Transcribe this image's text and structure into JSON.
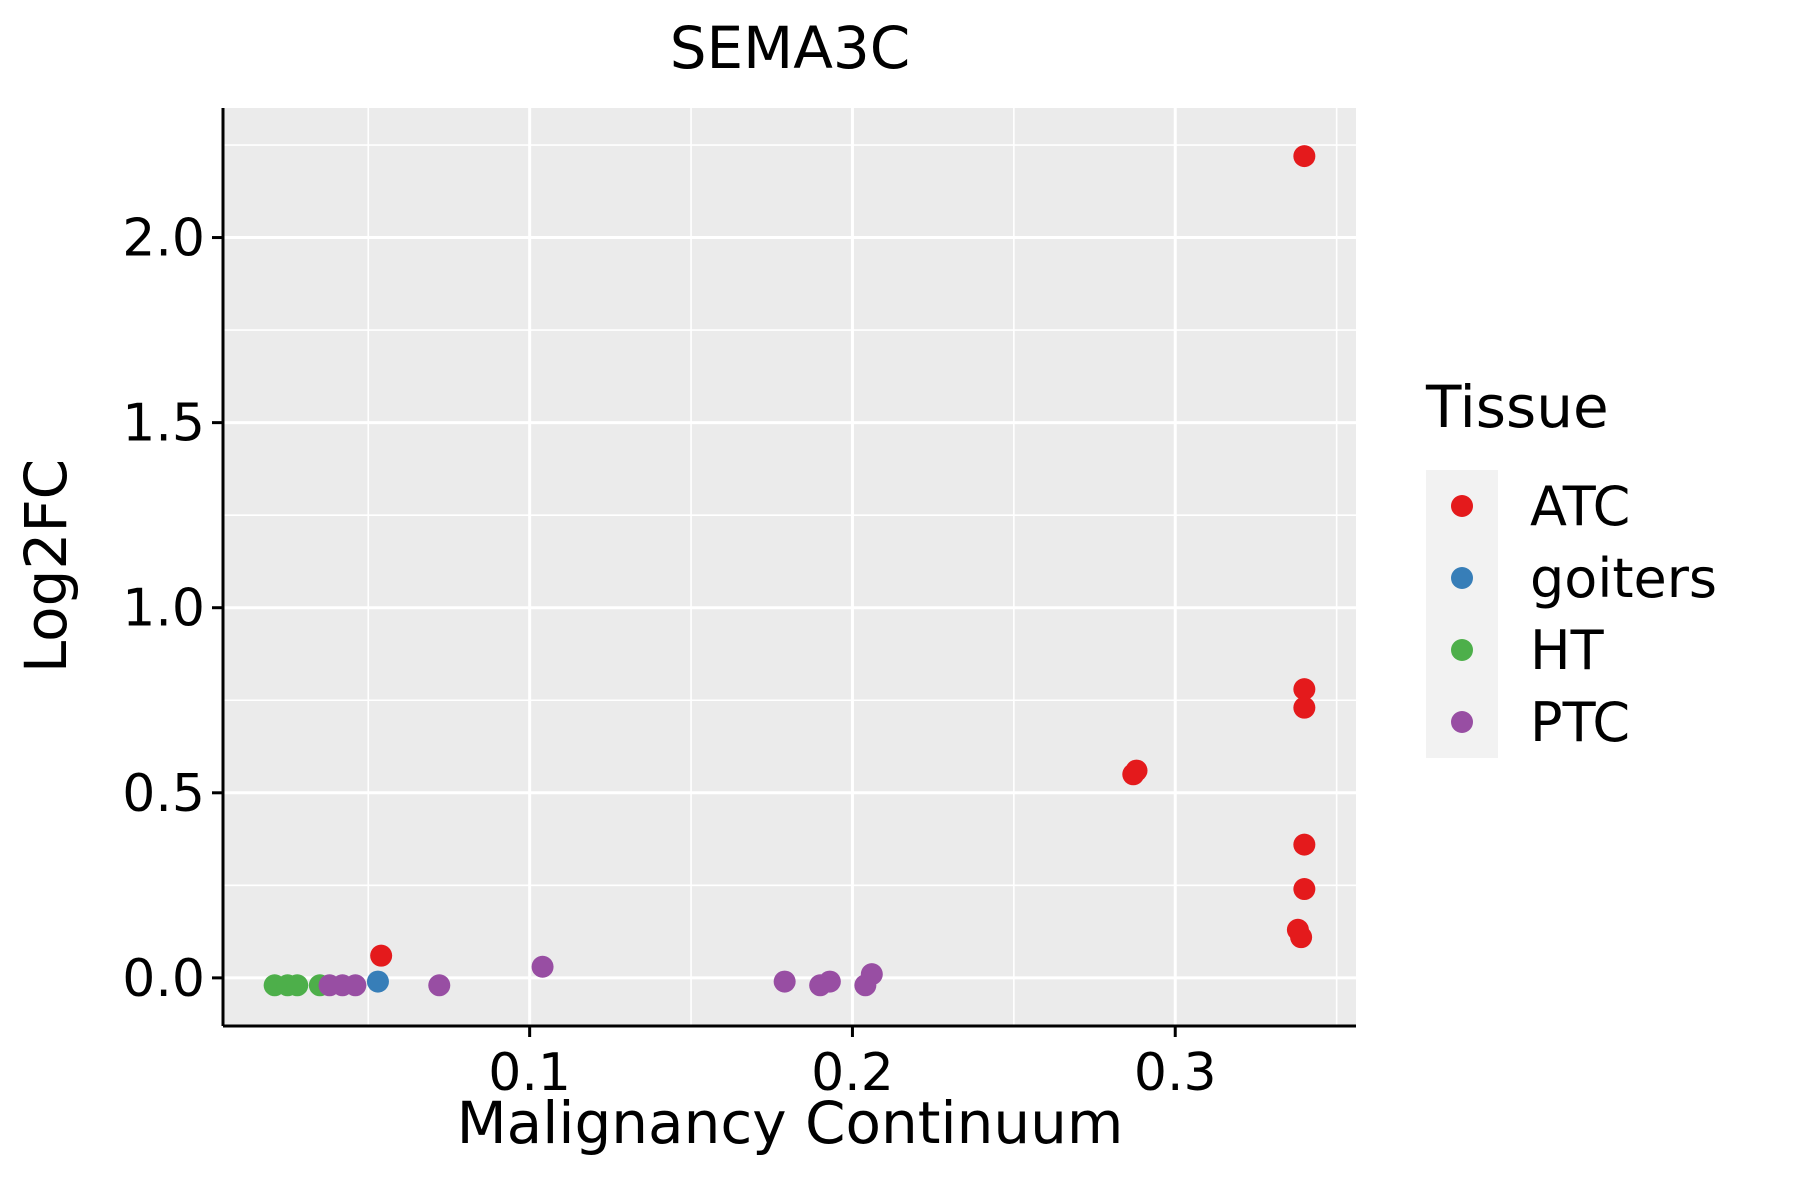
{
  "chart_data": {
    "type": "scatter",
    "title": "SEMA3C",
    "xlabel": "Malignancy Continuum",
    "ylabel": "Log2FC",
    "xlim": [
      0.005,
      0.356
    ],
    "ylim": [
      -0.13,
      2.35
    ],
    "xticks": [
      0.1,
      0.2,
      0.3
    ],
    "xtick_labels": [
      "0.1",
      "0.2",
      "0.3"
    ],
    "xminor": [
      0.05,
      0.15,
      0.25,
      0.35
    ],
    "yticks": [
      0.0,
      0.5,
      1.0,
      1.5,
      2.0
    ],
    "ytick_labels": [
      "0.0",
      "0.5",
      "1.0",
      "1.5",
      "2.0"
    ],
    "yminor": [
      0.25,
      0.75,
      1.25,
      1.75,
      2.25
    ],
    "grid": true,
    "legend": {
      "title": "Tissue",
      "position": "right",
      "entries": [
        "ATC",
        "goiters",
        "HT",
        "PTC"
      ]
    },
    "colors": {
      "ATC": "#E41A1C",
      "goiters": "#377EB8",
      "HT": "#4DAF4A",
      "PTC": "#984EA3"
    },
    "series": [
      {
        "name": "ATC",
        "x": [
          0.34,
          0.34,
          0.34,
          0.287,
          0.288,
          0.34,
          0.34,
          0.338,
          0.339,
          0.054
        ],
        "y": [
          2.22,
          0.78,
          0.73,
          0.55,
          0.56,
          0.36,
          0.24,
          0.13,
          0.11,
          0.06
        ]
      },
      {
        "name": "goiters",
        "x": [
          0.053
        ],
        "y": [
          -0.01
        ]
      },
      {
        "name": "HT",
        "x": [
          0.021,
          0.025,
          0.028,
          0.035
        ],
        "y": [
          -0.02,
          -0.02,
          -0.02,
          -0.02
        ]
      },
      {
        "name": "PTC",
        "x": [
          0.038,
          0.042,
          0.046,
          0.072,
          0.104,
          0.179,
          0.19,
          0.193,
          0.204,
          0.206
        ],
        "y": [
          -0.02,
          -0.02,
          -0.02,
          -0.02,
          0.03,
          -0.01,
          -0.02,
          -0.01,
          -0.02,
          0.01
        ]
      }
    ]
  }
}
